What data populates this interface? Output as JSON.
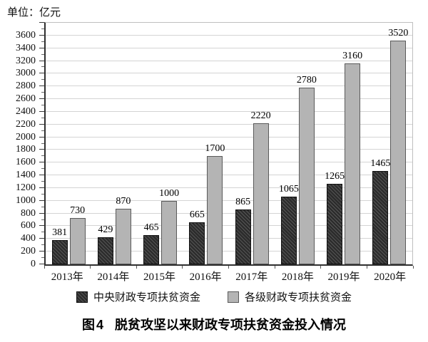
{
  "unit_label": "单位：亿元",
  "caption": {
    "label": "图4",
    "text": "脱贫攻坚以来财政专项扶贫资金投入情况"
  },
  "chart_data": {
    "type": "bar",
    "title": "图4 脱贫攻坚以来财政专项扶贫资金投入情况",
    "unit": "亿元",
    "categories": [
      "2013年",
      "2014年",
      "2015年",
      "2016年",
      "2017年",
      "2018年",
      "2019年",
      "2020年"
    ],
    "series": [
      {
        "name": "中央财政专项扶贫资金",
        "values": [
          381,
          429,
          465,
          665,
          865,
          1065,
          1265,
          1465
        ],
        "color": "#333333",
        "hatch": true
      },
      {
        "name": "各级财政专项扶贫资金",
        "values": [
          730,
          870,
          1000,
          1700,
          2220,
          2780,
          3160,
          3520
        ],
        "color": "#b4b4b4",
        "hatch": false
      }
    ],
    "ylim": [
      0,
      3800
    ],
    "ytick_step": 200,
    "ytick_label_max": 3600,
    "minor_tick_step": 100,
    "grid": true,
    "legend_position": "bottom",
    "value_labels": true
  },
  "colors": {
    "grid": "#d4d4d4",
    "axis": "#2f2f2f",
    "frame": "#bfbfbf",
    "dark_bar": "#333333",
    "light_bar": "#b4b4b4"
  }
}
